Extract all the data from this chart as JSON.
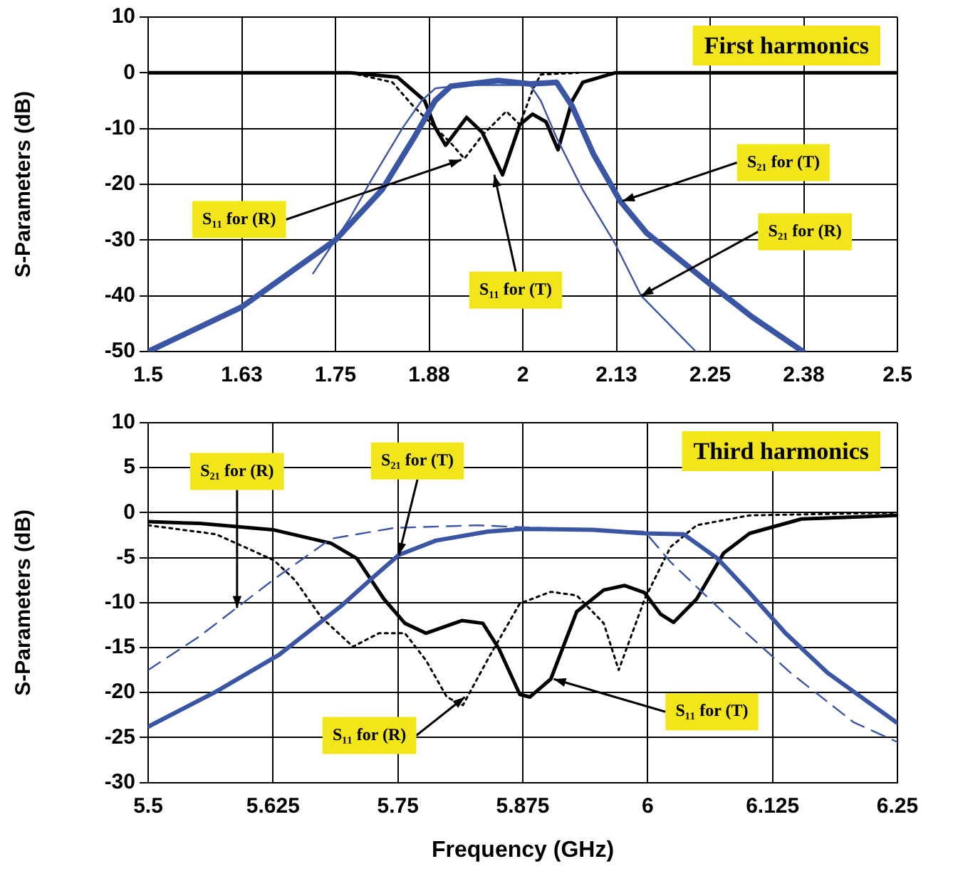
{
  "chart_data": [
    {
      "type": "line",
      "title": "First harmonics",
      "ylabel": "S-Parameters (dB)",
      "xlim": [
        1.5,
        2.5
      ],
      "xticks": [
        1.5,
        {
          "value": 1.625,
          "label": "1.63"
        },
        1.75,
        {
          "value": 1.875,
          "label": "1.88"
        },
        2,
        {
          "value": 2.125,
          "label": "2.13"
        },
        2.25,
        {
          "value": 2.375,
          "label": "2.38"
        },
        2.5
      ],
      "ylim": [
        -50,
        10
      ],
      "yticks": [
        -50,
        -40,
        -30,
        -20,
        -10,
        0,
        10
      ],
      "grid": true,
      "legend": false,
      "marker": "none",
      "series": [
        {
          "color": "#3a55a4",
          "line_style": "solid",
          "x": [
            1.5,
            1.625,
            1.75,
            1.812,
            1.855,
            1.883,
            1.904,
            1.967,
            2.01,
            2.045,
            2.066,
            2.094,
            2.13,
            2.165,
            2.248,
            2.306,
            2.374
          ],
          "values": [
            -50,
            -42,
            -30,
            -21,
            -11.6,
            -5,
            -2.4,
            -1.4,
            -2,
            -1.7,
            -6,
            -14.5,
            -23,
            -28.7,
            -37.7,
            -43.8,
            -50
          ]
        },
        {
          "color": "#3a55a4",
          "line_style": "solid",
          "x": [
            1.72,
            1.77,
            1.798,
            1.84,
            1.865,
            1.883,
            1.918,
            2.01,
            2.024,
            2.045,
            2.08,
            2.123,
            2.158,
            2.231
          ],
          "values": [
            -36,
            -25.9,
            -19.2,
            -9.8,
            -5,
            -2.8,
            -2.2,
            -2.2,
            -5,
            -11.6,
            -21,
            -30.6,
            -40,
            -50
          ]
        },
        {
          "color": "#000000",
          "line_style": "solid",
          "x": [
            1.5,
            1.77,
            1.833,
            1.869,
            1.883,
            1.897,
            1.925,
            1.946,
            1.973,
            1.996,
            2.013,
            2.031,
            2.047,
            2.066,
            2.08,
            2.123,
            2.5
          ],
          "values": [
            0,
            0,
            -0.8,
            -5,
            -9.8,
            -13,
            -8,
            -10.7,
            -18.3,
            -9.3,
            -7.4,
            -8.8,
            -13.8,
            -5,
            -1.7,
            0,
            0
          ]
        },
        {
          "color": "#000000",
          "line_style": "dotted",
          "x": [
            1.77,
            1.826,
            1.854,
            1.883,
            1.904,
            1.922,
            1.946,
            1.978,
            1.996,
            2.013,
            2.024,
            2.074
          ],
          "values": [
            0,
            -1.7,
            -6,
            -9.8,
            -12.6,
            -15.4,
            -11.2,
            -6.9,
            -9.3,
            -3.1,
            -0.3,
            0
          ]
        }
      ],
      "annotations": [
        {
          "text": "S₁₁ for (R)",
          "x": 1.918,
          "y": -15.6
        },
        {
          "text": "S₁₁ for (T)",
          "x": 1.962,
          "y": -18.3
        },
        {
          "text": "S₂₁ for (T)",
          "x": 2.133,
          "y": -23
        },
        {
          "text": "S₂₁ for (R)",
          "x": 2.158,
          "y": -40
        }
      ]
    },
    {
      "type": "line",
      "title": "Third harmonics",
      "xlabel": "Frequency (GHz)",
      "ylabel": "S-Parameters (dB)",
      "xlim": [
        5.5,
        6.25
      ],
      "xticks": [
        5.5,
        5.625,
        5.75,
        5.875,
        6,
        6.125,
        6.25
      ],
      "ylim": [
        -30,
        10
      ],
      "yticks": [
        -30,
        -25,
        -20,
        -15,
        -10,
        -5,
        0,
        5,
        10
      ],
      "grid": true,
      "legend": false,
      "marker": "none",
      "series": [
        {
          "color": "#3a55a4",
          "line_style": "solid",
          "x": [
            5.5,
            5.568,
            5.631,
            5.694,
            5.725,
            5.751,
            5.788,
            5.84,
            5.875,
            5.945,
            5.997,
            6.036,
            6.07,
            6.102,
            6.138,
            6.18,
            6.25
          ],
          "values": [
            -23.8,
            -19.9,
            -15.8,
            -10.3,
            -7.2,
            -4.7,
            -3.1,
            -2.1,
            -1.8,
            -1.9,
            -2.3,
            -2.4,
            -5.1,
            -8.9,
            -13.4,
            -17.8,
            -23.4
          ]
        },
        {
          "color": "#3a55a4",
          "line_style": "dashed",
          "x": [
            5.5,
            5.552,
            5.626,
            5.683,
            5.746,
            5.83,
            5.892,
            5.997,
            6.023,
            6.075,
            6.143,
            6.206,
            6.25
          ],
          "values": [
            -17.5,
            -13.7,
            -7.4,
            -2.9,
            -1.7,
            -1.4,
            -1.7,
            -2.1,
            -5.5,
            -11,
            -17.8,
            -23.3,
            -25.5
          ]
        },
        {
          "color": "#000000",
          "line_style": "solid",
          "x": [
            5.5,
            5.552,
            5.625,
            5.683,
            5.709,
            5.736,
            5.757,
            5.778,
            5.814,
            5.835,
            5.851,
            5.872,
            5.882,
            5.903,
            5.929,
            5.956,
            5.977,
            5.997,
            6.013,
            6.026,
            6.049,
            6.076,
            6.102,
            6.154,
            6.25
          ],
          "values": [
            -1,
            -1.2,
            -1.9,
            -3.4,
            -5.1,
            -9.6,
            -12.3,
            -13.4,
            -12,
            -12.3,
            -15.1,
            -20.2,
            -20.5,
            -18.5,
            -11,
            -8.6,
            -8.1,
            -8.9,
            -11.3,
            -12.2,
            -9.6,
            -4.5,
            -2.3,
            -0.7,
            -0.3
          ]
        },
        {
          "color": "#000000",
          "line_style": "dotted",
          "x": [
            5.5,
            5.568,
            5.626,
            5.647,
            5.673,
            5.705,
            5.731,
            5.757,
            5.778,
            5.799,
            5.815,
            5.841,
            5.872,
            5.903,
            5.929,
            5.956,
            5.971,
            5.997,
            6.023,
            6.049,
            6.102,
            6.25
          ],
          "values": [
            -1.4,
            -2.4,
            -5.3,
            -7.5,
            -11.6,
            -14.9,
            -13.4,
            -13.4,
            -16.4,
            -20.5,
            -21.4,
            -16.1,
            -10.1,
            -8.8,
            -9.2,
            -12.3,
            -17.5,
            -9.6,
            -3.8,
            -1.4,
            -0.3,
            0
          ]
        }
      ],
      "annotations": [
        {
          "text": "S₂₁ for (R)",
          "x": 5.589,
          "y": -10.6
        },
        {
          "text": "S₂₁ for (T)",
          "x": 5.751,
          "y": -4.7
        },
        {
          "text": "S₁₁ for (R)",
          "x": 5.817,
          "y": -20.5
        },
        {
          "text": "S₁₁ for (T)",
          "x": 5.906,
          "y": -18.5
        }
      ]
    }
  ]
}
